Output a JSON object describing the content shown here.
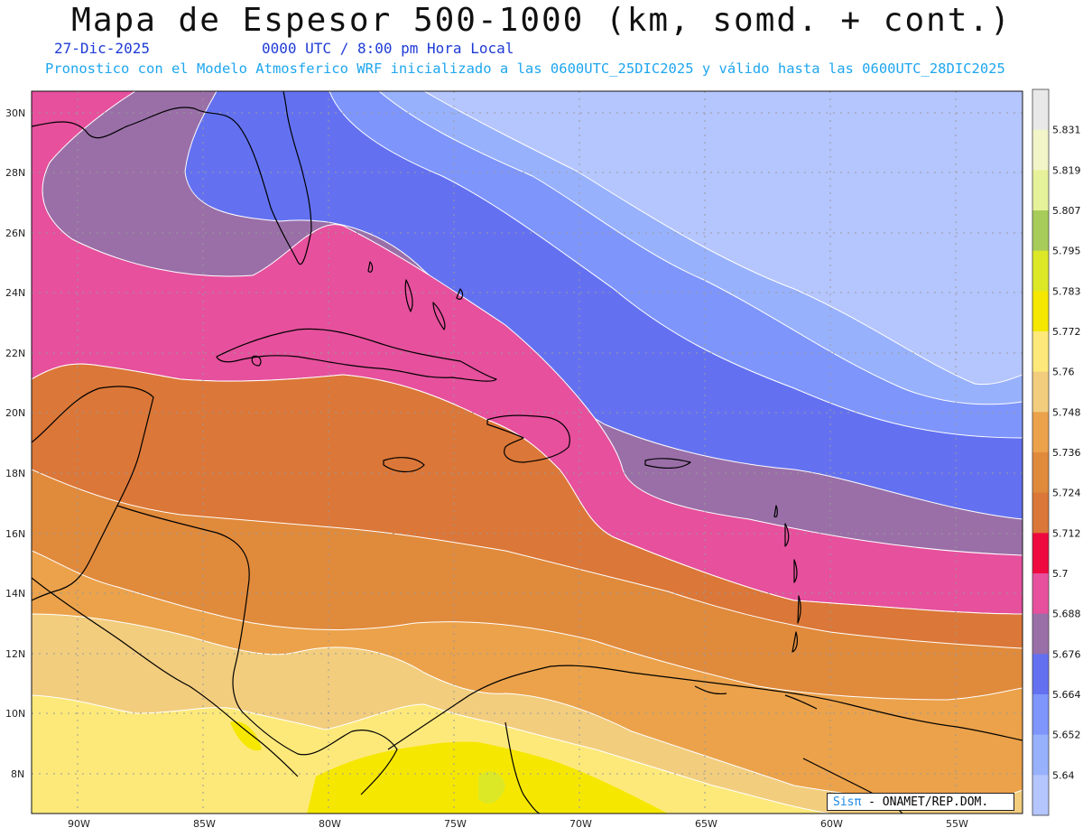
{
  "title": "Mapa de Espesor 500-1000 (km, somd. + cont.)",
  "date_label": "27-Dic-2025",
  "time_label": "0000 UTC / 8:00 pm Hora Local",
  "forecast_info": "Pronostico con el Modelo Atmosferico WRF inicializado a las 0600UTC_25DIC2025 y válido hasta las  0600UTC_28DIC2025",
  "credit": {
    "sis": "Sisπ",
    "rest": " - ONAMET/REP.DOM."
  },
  "lat_ticks": [
    "30N",
    "28N",
    "26N",
    "24N",
    "22N",
    "20N",
    "18N",
    "16N",
    "14N",
    "12N",
    "10N",
    "8N"
  ],
  "lon_ticks": [
    "90W",
    "85W",
    "80W",
    "75W",
    "70W",
    "65W",
    "60W",
    "55W"
  ],
  "colorbar": {
    "labels": [
      "5.831",
      "5.819",
      "5.807",
      "5.795",
      "5.783",
      "5.772",
      "5.76",
      "5.748",
      "5.736",
      "5.724",
      "5.712",
      "5.7",
      "5.688",
      "5.676",
      "5.664",
      "5.652",
      "5.64"
    ],
    "colors": [
      "#e8e8e8",
      "#f2f5c8",
      "#e6f29a",
      "#a7cc5a",
      "#dce826",
      "#f6e700",
      "#fde97a",
      "#f2cd7e",
      "#eba24b",
      "#e08a3c",
      "#db7738",
      "#ee0a3e",
      "#e6509d",
      "#9a6fa8",
      "#6371f1",
      "#7e95fb",
      "#98b1fc",
      "#b5c5fd"
    ]
  },
  "colors": {
    "band_12": "#b5c5fd",
    "band_11": "#98b1fc",
    "band_10": "#7e95fb",
    "band_9": "#6371f1",
    "band_8": "#9a6fa8",
    "band_7": "#e6509d",
    "band_6": "#ee0a3e",
    "band_5": "#db7738",
    "band_4": "#e08a3c",
    "band_3": "#eba24b",
    "band_2": "#f2cd7e",
    "band_1": "#fde97a",
    "band_0": "#f6e700",
    "band_00": "#dce826",
    "coast": "#000000",
    "contour": "#ffffff"
  }
}
